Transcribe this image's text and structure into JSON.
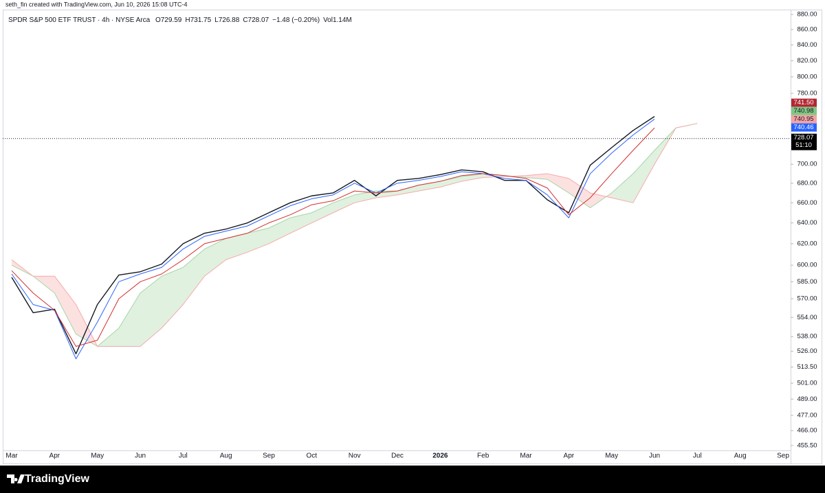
{
  "header": {
    "caption": "seth_fin created with TradingView.com, Jun 10, 2026 15:08 UTC-4"
  },
  "chart_data": {
    "type": "ichimoku",
    "title": "SPDR S&P 500 ETF TRUST · 4h · NYSE Arca",
    "ohlc": [
      "O729.59",
      "H731.75",
      "L726.88",
      "C728.07",
      "−1.48 (−0.20%)",
      "Vol1.14M"
    ],
    "categories": [
      "Mar",
      null,
      "Apr",
      null,
      "May",
      null,
      "Jun",
      null,
      "Jul",
      null,
      "Aug",
      null,
      "Sep",
      null,
      "Oct",
      null,
      "Nov",
      null,
      "Dec",
      null,
      "2026",
      null,
      "Feb",
      null,
      "Mar",
      null,
      "Apr",
      null,
      "May",
      null,
      "Jun",
      null,
      "Jul",
      null,
      "Aug",
      null,
      "Sep"
    ],
    "log": true,
    "grid": false,
    "ylim": [
      443.2,
      886.5
    ],
    "yticks": [
      {
        "value": 880,
        "label": "880.00"
      },
      {
        "value": 860,
        "label": "860.00"
      },
      {
        "value": 840,
        "label": "840.00"
      },
      {
        "value": 820,
        "label": "820.00"
      },
      {
        "value": 800,
        "label": "800.00"
      },
      {
        "value": 780,
        "label": "780.00"
      },
      {
        "value": 700,
        "label": "700.00"
      },
      {
        "value": 680,
        "label": "680.00"
      },
      {
        "value": 660,
        "label": "660.00"
      },
      {
        "value": 640,
        "label": "640.00"
      },
      {
        "value": 620,
        "label": "620.00"
      },
      {
        "value": 600,
        "label": "600.00"
      },
      {
        "value": 585,
        "label": "585.00"
      },
      {
        "value": 570,
        "label": "570.00"
      },
      {
        "value": 554,
        "label": "554.00"
      },
      {
        "value": 538,
        "label": "538.00"
      },
      {
        "value": 526,
        "label": "526.00"
      },
      {
        "value": 513.5,
        "label": "513.50"
      },
      {
        "value": 501,
        "label": "501.00"
      },
      {
        "value": 489,
        "label": "489.00"
      },
      {
        "value": 477,
        "label": "477.00"
      },
      {
        "value": 466,
        "label": "466.00"
      },
      {
        "value": 455.5,
        "label": "455.50"
      }
    ],
    "series": [
      {
        "color": "#131722",
        "values": [
          589,
          558,
          561,
          524,
          565,
          591,
          594,
          601,
          620,
          630,
          634,
          640,
          650,
          660,
          667,
          670,
          683,
          667,
          683,
          685,
          689,
          694,
          692,
          683,
          683,
          663,
          650,
          699,
          718,
          737,
          753,
          null,
          null,
          null,
          null,
          null,
          null
        ]
      },
      {
        "color": "#2962ff",
        "values": [
          592,
          565,
          560,
          520,
          550,
          585,
          592,
          598,
          615,
          627,
          632,
          637,
          647,
          657,
          664,
          668,
          680,
          670,
          680,
          683,
          687,
          692,
          690,
          685,
          683,
          668,
          645,
          690,
          712,
          732,
          750,
          null,
          null,
          null,
          null,
          null,
          null
        ]
      },
      {
        "color": "#d32f2f",
        "values": [
          595,
          575,
          560,
          530,
          535,
          570,
          585,
          592,
          605,
          620,
          625,
          630,
          640,
          648,
          658,
          662,
          672,
          670,
          672,
          678,
          682,
          688,
          690,
          688,
          685,
          675,
          648,
          665,
          690,
          715,
          740,
          null,
          null,
          null,
          null,
          null,
          null
        ]
      }
    ],
    "cloud": {
      "span_a": [
        600,
        590,
        575,
        540,
        530,
        545,
        575,
        590,
        598,
        615,
        625,
        630,
        635,
        645,
        650,
        660,
        668,
        672,
        672,
        678,
        682,
        687,
        690,
        688,
        686,
        684,
        670,
        655,
        670,
        690,
        715,
        740,
        745,
        null,
        null,
        null,
        null
      ],
      "span_b": [
        605,
        590,
        590,
        565,
        530,
        530,
        530,
        545,
        565,
        590,
        605,
        612,
        620,
        630,
        640,
        650,
        660,
        665,
        668,
        672,
        676,
        682,
        686,
        687,
        688,
        690,
        685,
        670,
        665,
        660,
        700,
        740,
        745,
        null,
        null,
        null,
        null
      ],
      "up_color": "#a5d6a7",
      "down_color": "#f7a9a8"
    },
    "price_labels": [
      {
        "value": 741.5,
        "label": "741.50",
        "color": "#b22833"
      },
      {
        "value": 740.98,
        "label": "740.98",
        "color": "#81c784"
      },
      {
        "value": 740.95,
        "label": "740.95",
        "color": "#f4a3a3"
      },
      {
        "value": 740.46,
        "label": "740.46",
        "color": "#2962ff"
      }
    ],
    "last_price": {
      "value": 728.07,
      "label": "728.07",
      "countdown": "51:10"
    }
  },
  "footer": {
    "brand": "TradingView"
  }
}
